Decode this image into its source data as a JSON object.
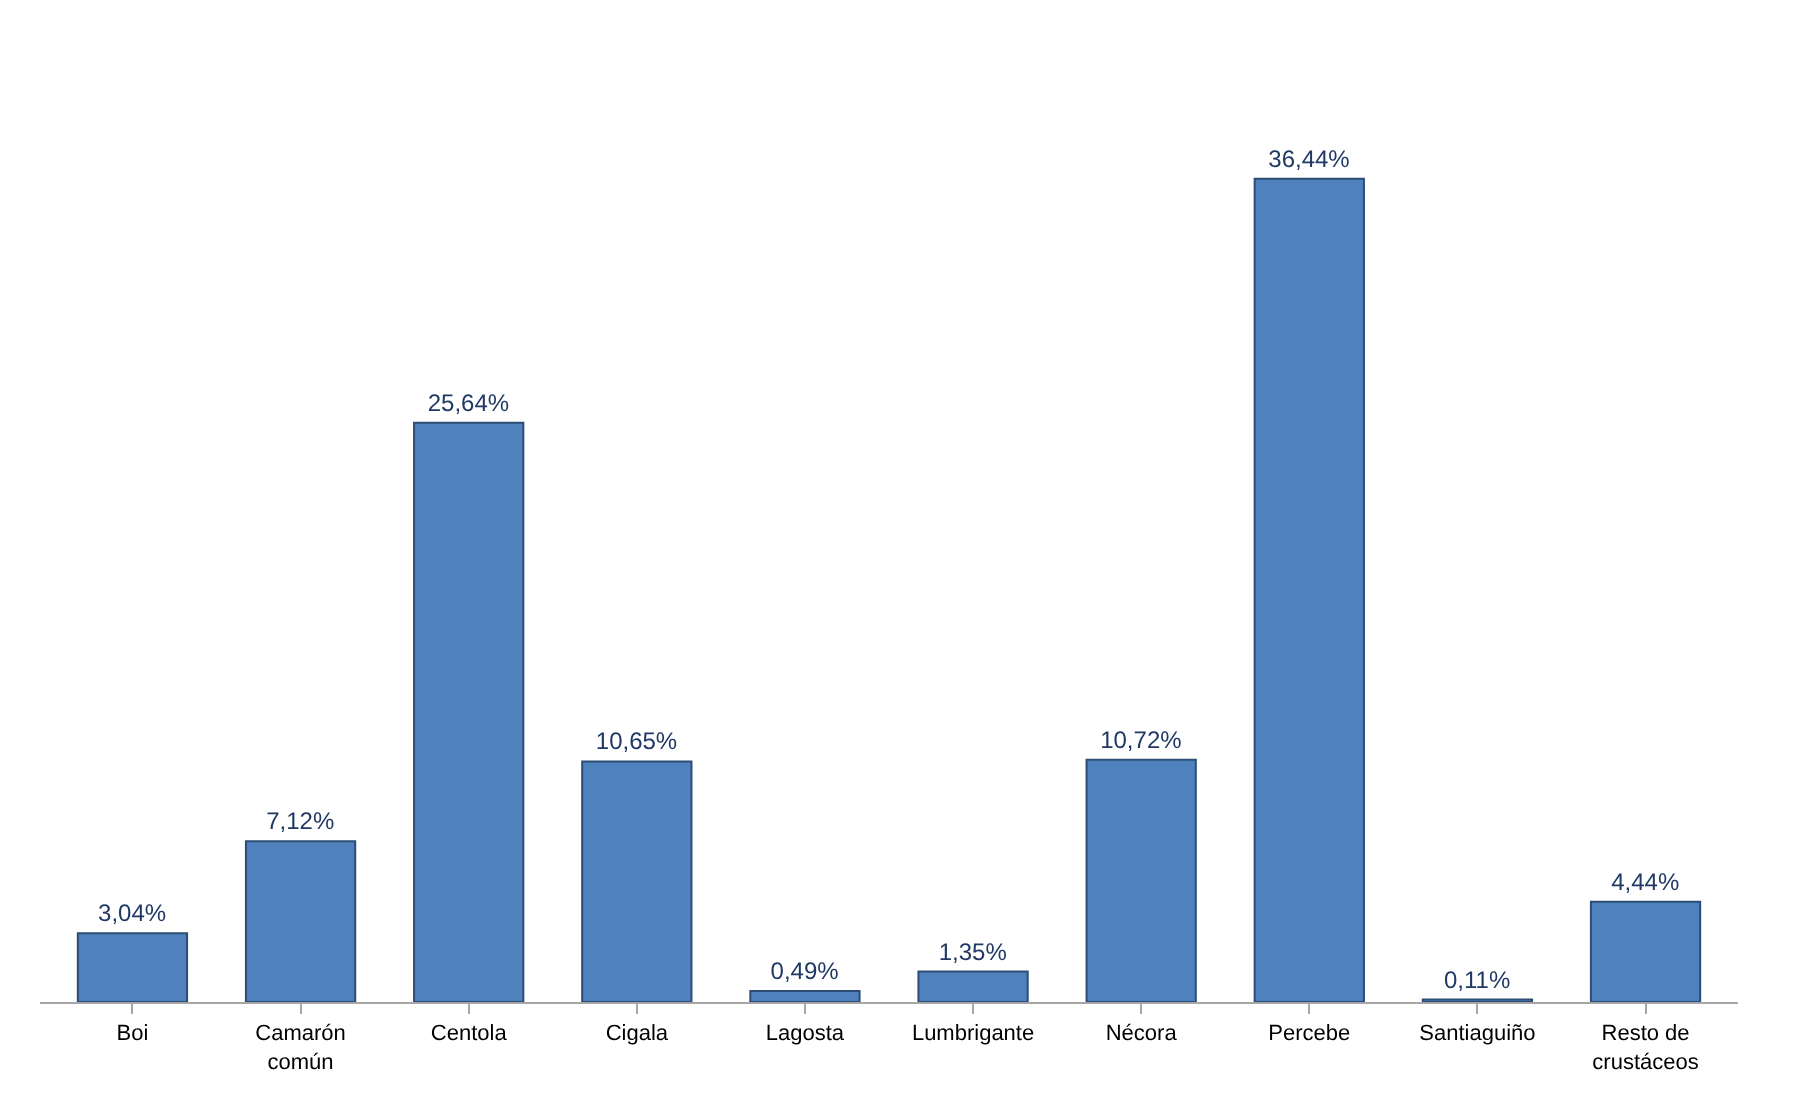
{
  "chart_data": {
    "type": "bar",
    "categories": [
      "Boi",
      "Camarón común",
      "Centola",
      "Cigala",
      "Lagosta",
      "Lumbrigante",
      "Nécora",
      "Percebe",
      "Santiaguiño",
      "Resto de crustáceos"
    ],
    "values": [
      3.04,
      7.12,
      25.64,
      10.65,
      0.49,
      1.35,
      10.72,
      36.44,
      0.11,
      4.44
    ],
    "value_labels": [
      "3,04%",
      "7,12%",
      "25,64%",
      "10,65%",
      "0,49%",
      "1,35%",
      "10,72%",
      "36,44%",
      "0,11%",
      "4,44%"
    ],
    "color": "#4f81bd"
  }
}
